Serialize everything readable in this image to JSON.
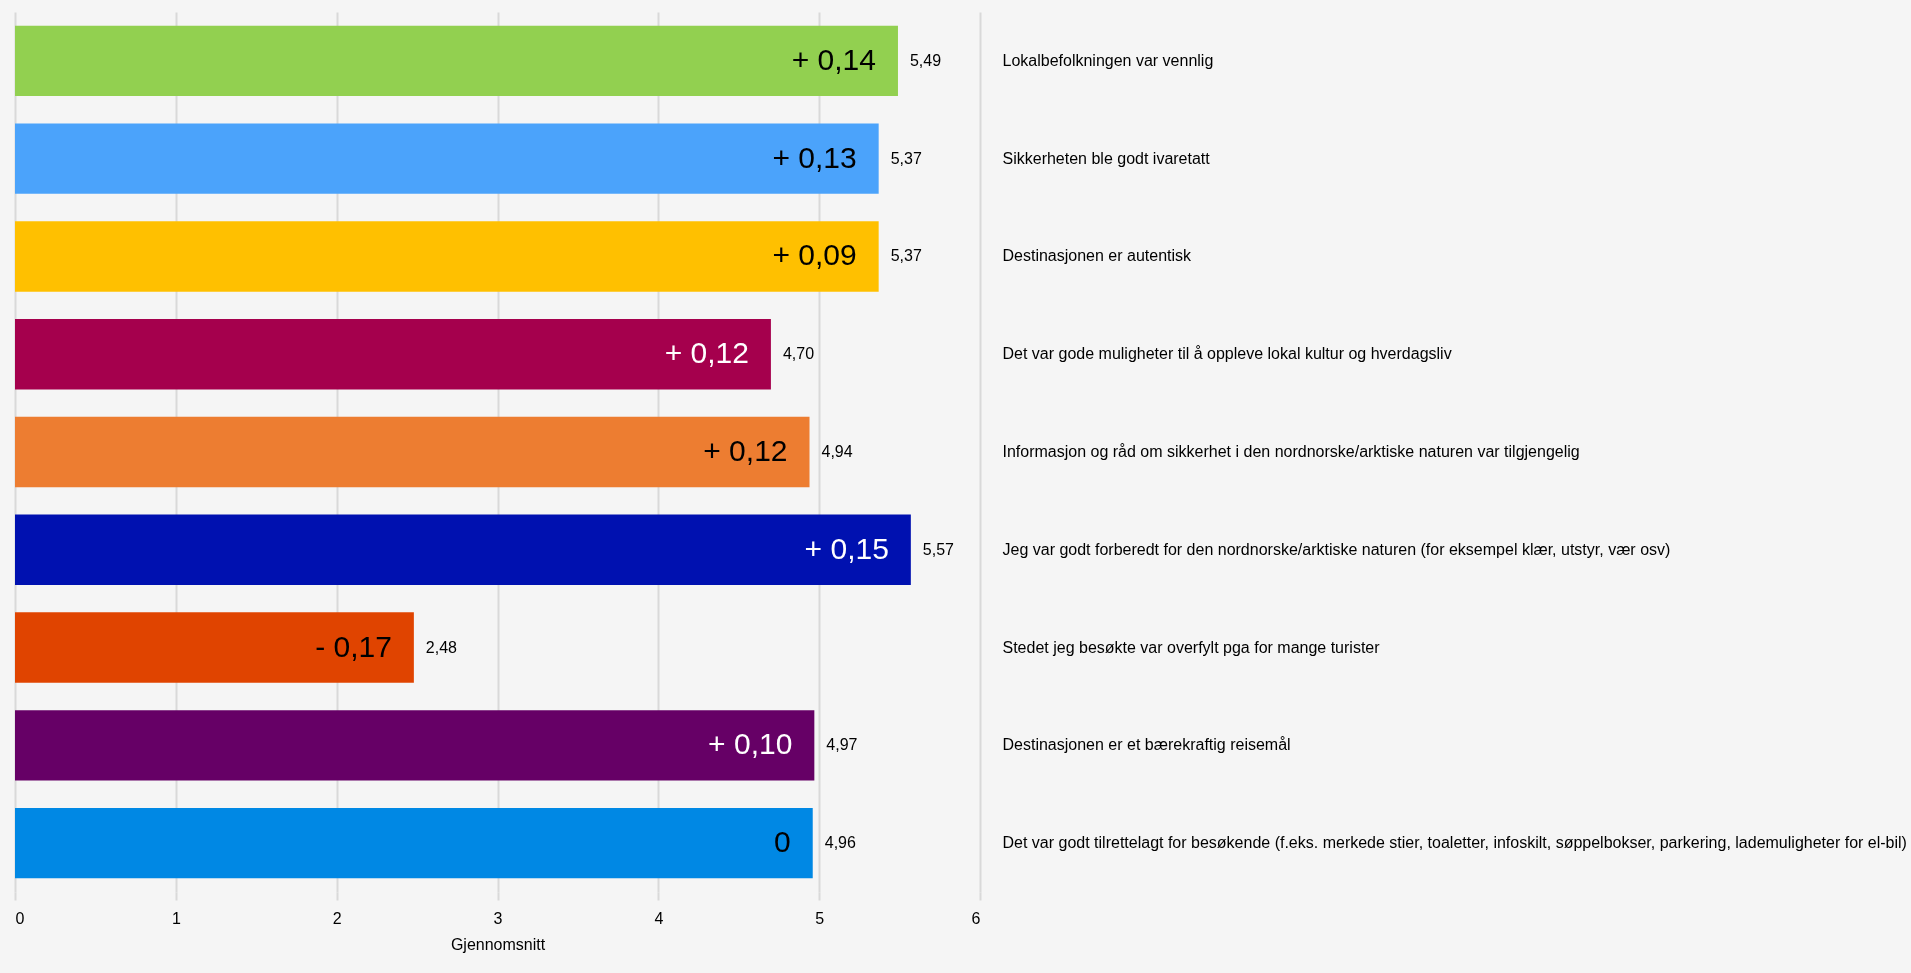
{
  "chart_data": {
    "type": "bar",
    "orientation": "horizontal",
    "xlabel": "Gjennomsnitt",
    "categories": [
      "Lokalbefolkningen var vennlig",
      "Sikkerheten ble godt ivaretatt",
      "Destinasjonen er autentisk",
      "Det var gode muligheter til å oppleve lokal kultur og hverdagsliv",
      "Informasjon og råd om sikkerhet i den nordnorske/arktiske naturen var tilgjengelig",
      "Jeg var godt forberedt for den nordnorske/arktiske naturen (for eksempel klær, utstyr, vær osv)",
      "Stedet jeg besøkte var overfylt pga for mange turister",
      "Destinasjonen er et bærekraftig reisemål",
      "Det var godt tilrettelagt for besøkende (f.eks. merkede stier, toaletter, infoskilt, søppelbokser, parkering, lademuligheter for el-bil)"
    ],
    "values": [
      5.49,
      5.37,
      5.37,
      4.7,
      4.94,
      5.57,
      2.48,
      4.97,
      4.96
    ],
    "value_labels": [
      "5,49",
      "5,37",
      "5,37",
      "4,70",
      "4,94",
      "5,57",
      "2,48",
      "4,97",
      "4,96"
    ],
    "colors": [
      "#92d050",
      "#4ba3fb",
      "#ffc000",
      "#a5004d",
      "#ed7d31",
      "#0011b0",
      "#e04400",
      "#660066",
      "#0088e4"
    ],
    "xlim": [
      0,
      6
    ],
    "xticks": [
      0,
      1,
      2,
      3,
      4,
      5,
      6
    ],
    "grid": "x",
    "annotations": [
      "+ 0,14",
      "+ 0,13",
      "+ 0,09",
      "+ 0,12",
      "+ 0,12",
      "+ 0,15",
      "- 0,17",
      "+ 0,10",
      "0"
    ]
  }
}
